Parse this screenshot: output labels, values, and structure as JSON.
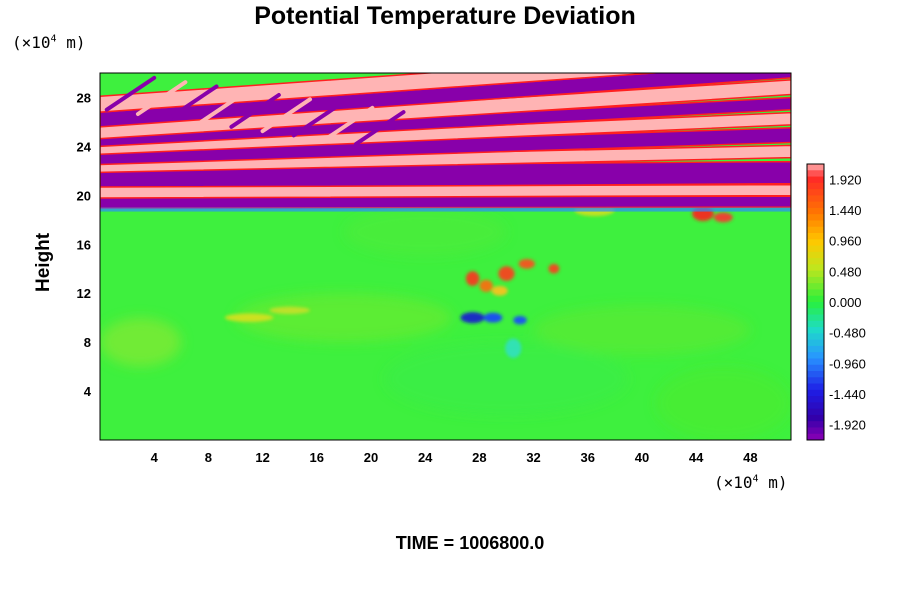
{
  "chart_data": {
    "type": "heatmap",
    "title": "Potential Temperature Deviation",
    "ylabel": "Height",
    "x_unit_prefix": "(×10",
    "x_unit_exp": "4",
    "x_unit_suffix": " m)",
    "y_unit_prefix": "(×10",
    "y_unit_exp": "4",
    "y_unit_suffix": " m)",
    "xlim": [
      0,
      51
    ],
    "ylim": [
      0,
      30
    ],
    "x_ticks": [
      4,
      8,
      12,
      16,
      20,
      24,
      28,
      32,
      36,
      40,
      44,
      48
    ],
    "x_tick_labels": [
      "4",
      "8",
      "12",
      "16",
      "20",
      "24",
      "28",
      "32",
      "36",
      "40",
      "44",
      "48"
    ],
    "y_ticks": [
      4,
      8,
      12,
      16,
      20,
      24,
      28
    ],
    "y_tick_labels": [
      "4",
      "8",
      "12",
      "16",
      "20",
      "24",
      "28"
    ],
    "colorbar": {
      "range": [
        -2.16,
        2.16
      ],
      "ticks": [
        1.92,
        1.44,
        0.96,
        0.48,
        0.0,
        -0.48,
        -0.96,
        -1.44,
        -1.92
      ],
      "tick_labels": [
        "1.920",
        "1.440",
        "0.960",
        "0.480",
        "0.000",
        "-0.480",
        "-0.960",
        "-1.440",
        "-1.920"
      ]
    },
    "time_label": "TIME = 1006800.0"
  }
}
